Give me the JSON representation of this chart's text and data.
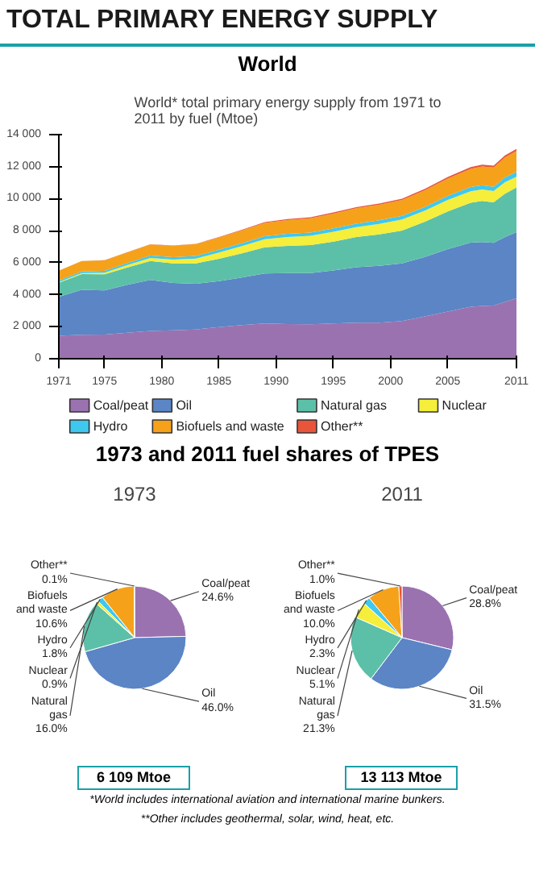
{
  "chart_data": [
    {
      "type": "area",
      "stacked": true,
      "title": "World* total primary energy supply from 1971 to 2011 by fuel (Mtoe)",
      "annotations": [
        "TOTAL PRIMARY ENERGY SUPPLY",
        "World"
      ],
      "x": [
        1971,
        1973,
        1975,
        1977,
        1979,
        1981,
        1983,
        1985,
        1987,
        1989,
        1991,
        1993,
        1995,
        1997,
        1999,
        2001,
        2003,
        2005,
        2007,
        2008,
        2009,
        2010,
        2011
      ],
      "series": [
        {
          "name": "Coal/peat",
          "color": "#9b72b0",
          "values": [
            1430,
            1500,
            1510,
            1620,
            1740,
            1770,
            1830,
            1980,
            2100,
            2200,
            2170,
            2150,
            2200,
            2250,
            2250,
            2350,
            2650,
            2950,
            3250,
            3300,
            3320,
            3550,
            3780
          ]
        },
        {
          "name": "Oil",
          "color": "#5b85c5",
          "values": [
            2430,
            2810,
            2760,
            3000,
            3180,
            2960,
            2850,
            2870,
            2980,
            3130,
            3180,
            3200,
            3320,
            3470,
            3560,
            3610,
            3710,
            3900,
            4000,
            3990,
            3920,
            4050,
            4130
          ]
        },
        {
          "name": "Natural gas",
          "color": "#5cc0a8",
          "values": [
            890,
            980,
            1000,
            1080,
            1190,
            1230,
            1280,
            1400,
            1500,
            1630,
            1700,
            1750,
            1800,
            1880,
            1960,
            2050,
            2200,
            2350,
            2500,
            2570,
            2530,
            2710,
            2790
          ]
        },
        {
          "name": "Nuclear",
          "color": "#f5ee3a",
          "values": [
            30,
            55,
            100,
            150,
            190,
            230,
            300,
            390,
            460,
            510,
            560,
            580,
            610,
            620,
            650,
            690,
            690,
            720,
            710,
            710,
            700,
            720,
            670
          ]
        },
        {
          "name": "Hydro",
          "color": "#3ec8f0",
          "values": [
            100,
            110,
            120,
            130,
            140,
            150,
            160,
            170,
            175,
            180,
            190,
            200,
            210,
            220,
            225,
            220,
            230,
            250,
            265,
            275,
            275,
            295,
            300
          ]
        },
        {
          "name": "Biofuels and waste",
          "color": "#f5a21a",
          "values": [
            620,
            645,
            660,
            670,
            700,
            720,
            740,
            770,
            800,
            830,
            860,
            900,
            930,
            960,
            980,
            1000,
            1040,
            1090,
            1140,
            1170,
            1200,
            1250,
            1310
          ]
        },
        {
          "name": "Other**",
          "color": "#e8553a",
          "values": [
            5,
            6,
            7,
            8,
            10,
            15,
            20,
            30,
            40,
            50,
            60,
            60,
            65,
            70,
            75,
            80,
            90,
            100,
            110,
            115,
            120,
            125,
            130
          ]
        }
      ],
      "xlim": [
        1971,
        2011
      ],
      "xticks": [
        1971,
        1975,
        1980,
        1985,
        1990,
        1995,
        2000,
        2005,
        2011
      ],
      "ylim": [
        0,
        14000
      ],
      "yticks": [
        0,
        {
          "value": 2000,
          "label": "2 000"
        },
        {
          "value": 4000,
          "label": "4 000"
        },
        {
          "value": 6000,
          "label": "6 000"
        },
        {
          "value": 8000,
          "label": "8 000"
        },
        {
          "value": 10000,
          "label": "10 000"
        },
        {
          "value": 12000,
          "label": "12 000"
        },
        {
          "value": 14000,
          "label": "14 000"
        }
      ],
      "legend": "bottom"
    },
    {
      "type": "pie",
      "title": "1973",
      "annotations": [
        "1973 and 2011 fuel shares of TPES",
        "6 109 Mtoe"
      ],
      "categories": [
        "Coal/peat",
        "Oil",
        "Natural gas",
        "Nuclear",
        "Hydro",
        "Biofuels and waste",
        "Other**"
      ],
      "values": [
        24.6,
        46.0,
        16.0,
        0.9,
        1.8,
        10.6,
        0.1
      ],
      "value_labels": [
        "24.6%",
        "46.0%",
        "16.0%",
        "0.9%",
        "1.8%",
        "10.6%",
        "0.1%"
      ],
      "colors": [
        "#9b72b0",
        "#5b85c5",
        "#5cc0a8",
        "#f5ee3a",
        "#3ec8f0",
        "#f5a21a",
        "#e8553a"
      ]
    },
    {
      "type": "pie",
      "title": "2011",
      "annotations": [
        "13 113 Mtoe",
        "*World includes international aviation and international marine bunkers.",
        "**Other includes geothermal, solar, wind, heat, etc."
      ],
      "categories": [
        "Coal/peat",
        "Oil",
        "Natural gas",
        "Nuclear",
        "Hydro",
        "Biofuels and waste",
        "Other**"
      ],
      "values": [
        28.8,
        31.5,
        21.3,
        5.1,
        2.3,
        10.0,
        1.0
      ],
      "value_labels": [
        "28.8%",
        "31.5%",
        "21.3%",
        "5.1%",
        "2.3%",
        "10.0%",
        "1.0%"
      ],
      "colors": [
        "#9b72b0",
        "#5b85c5",
        "#5cc0a8",
        "#f5ee3a",
        "#3ec8f0",
        "#f5a21a",
        "#e8553a"
      ]
    }
  ]
}
